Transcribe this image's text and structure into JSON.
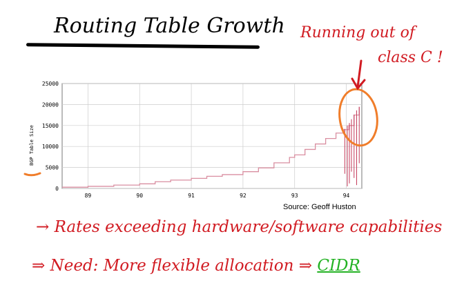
{
  "slide": {
    "title": "Routing Table Growth",
    "annotation_line1": "Running out of",
    "annotation_line2": "class C !",
    "source": "Source: Geoff Huston",
    "bullet1": "→ Rates exceeding hardware/software capabilities",
    "bullet2_prefix": "⇒ Need: More flexible allocation ⇒ ",
    "bullet2_cidr": "CIDR",
    "colors": {
      "annotation": "#d11b22",
      "cidr": "#23b223",
      "circle": "#f07d2a",
      "series": "#d98ea0"
    }
  },
  "chart_data": {
    "type": "line",
    "ylabel": "BGP Table Size",
    "xlabel": "",
    "xlim": [
      88.5,
      94.3
    ],
    "ylim": [
      0,
      25000
    ],
    "x_ticks": [
      "89",
      "90",
      "91",
      "92",
      "93",
      "94"
    ],
    "y_ticks": [
      "0",
      "5000",
      "10000",
      "15000",
      "20000",
      "25000"
    ],
    "grid": true,
    "series": [
      {
        "x": [
          88.5,
          89.0,
          89.5,
          90.0,
          90.3,
          90.6,
          91.0,
          91.3,
          91.6,
          92.0,
          92.3,
          92.6,
          92.9,
          93.0,
          93.2,
          93.4,
          93.6,
          93.8,
          93.95,
          94.05,
          94.15,
          94.25
        ],
        "values": [
          300,
          500,
          800,
          1100,
          1600,
          2000,
          2400,
          2900,
          3300,
          4000,
          4900,
          6100,
          7400,
          8000,
          9300,
          10600,
          11900,
          13200,
          14000,
          15000,
          17500,
          19500
        ]
      }
    ]
  }
}
